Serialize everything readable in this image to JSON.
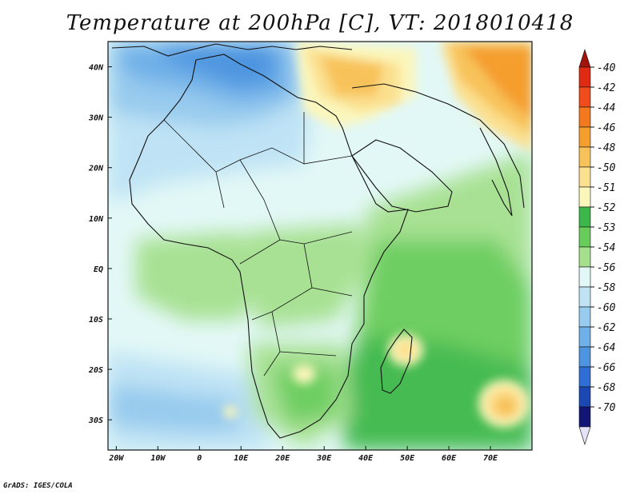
{
  "title": "Temperature at 200hPa [C], VT: 2018010418",
  "footer": "GrADS: IGES/COLA",
  "map": {
    "lon_labels": [
      "20W",
      "10W",
      "0",
      "10E",
      "20E",
      "30E",
      "40E",
      "50E",
      "60E",
      "70E"
    ],
    "lat_labels": [
      "40N",
      "30N",
      "20N",
      "10N",
      "EQ",
      "10S",
      "20S",
      "30S"
    ],
    "lon_range": [
      -22,
      80
    ],
    "lat_range": [
      -36,
      45
    ]
  },
  "colorbar": {
    "labels": [
      "-40",
      "-42",
      "-44",
      "-46",
      "-48",
      "-50",
      "-51",
      "-52",
      "-53",
      "-54",
      "-56",
      "-58",
      "-60",
      "-62",
      "-64",
      "-66",
      "-68",
      "-70"
    ],
    "colors": [
      "#e02a13",
      "#f14d1c",
      "#f2791d",
      "#f59e2d",
      "#f8c25a",
      "#fbe08f",
      "#fbf6bc",
      "#3cb84a",
      "#68cc5a",
      "#a5e08e",
      "#e2f8f6",
      "#bfe3f5",
      "#98cbee",
      "#6fb0e8",
      "#4d95e0",
      "#2f6ed4",
      "#1c48b3",
      "#131575"
    ]
  }
}
